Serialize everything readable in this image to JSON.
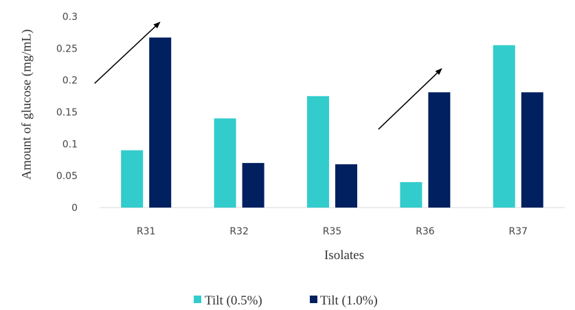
{
  "chart_data": {
    "type": "bar",
    "xlabel": "Isolates",
    "ylabel": "Amount of glucose (mg/mL)",
    "categories": [
      "R31",
      "R32",
      "R35",
      "R36",
      "R37"
    ],
    "series": [
      {
        "name": "Tilt (0.5%)",
        "color": "#33CCCC",
        "values": [
          0.09,
          0.14,
          0.175,
          0.04,
          0.255
        ]
      },
      {
        "name": "Tilt (1.0%)",
        "color": "#002060",
        "values": [
          0.267,
          0.07,
          0.068,
          0.181,
          0.181
        ]
      }
    ],
    "ylim": [
      0,
      0.3
    ],
    "yticks": [
      "0",
      "0.05",
      "0.1",
      "0.15",
      "0.2",
      "0.25",
      "0.3"
    ],
    "grid": false,
    "legend_position": "bottom",
    "annotations": [
      {
        "type": "arrow",
        "from": [
          "R31",
          0.195
        ],
        "to": [
          "R31",
          0.291
        ]
      },
      {
        "type": "arrow",
        "from": [
          "R36",
          0.123
        ],
        "to": [
          "R36",
          0.218
        ]
      }
    ]
  }
}
